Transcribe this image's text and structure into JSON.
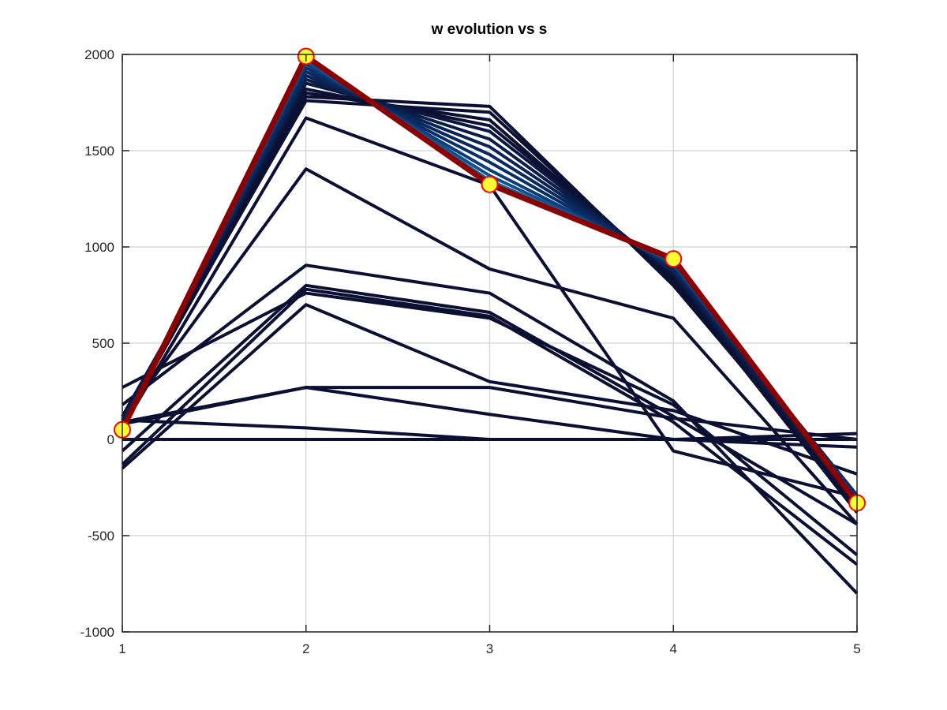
{
  "chart_data": {
    "type": "line",
    "title": "w evolution vs s",
    "xlabel": "",
    "ylabel": "",
    "x": [
      1,
      2,
      3,
      4,
      5
    ],
    "xlim": [
      1,
      5
    ],
    "ylim": [
      -1000,
      2000
    ],
    "xticks": [
      "1",
      "2",
      "3",
      "4",
      "5"
    ],
    "yticks": [
      "-1000",
      "-500",
      "0",
      "500",
      "1000",
      "1500",
      "2000"
    ],
    "grid": true,
    "line_colors": {
      "early": "#0b1033",
      "mid": "#08306b",
      "late": "#1f77b4",
      "final": "#8b0000",
      "marker_fill": "#ffff33",
      "marker_edge": "#ff0000"
    },
    "series": [
      {
        "values": [
          0,
          0,
          0,
          0,
          0
        ]
      },
      {
        "values": [
          100,
          60,
          0,
          0,
          30
        ]
      },
      {
        "values": [
          90,
          270,
          270,
          110,
          0
        ]
      },
      {
        "values": [
          80,
          270,
          130,
          0,
          -40
        ]
      },
      {
        "values": [
          -150,
          700,
          300,
          150,
          -180
        ]
      },
      {
        "values": [
          270,
          760,
          630,
          180,
          -600
        ]
      },
      {
        "values": [
          -130,
          780,
          640,
          90,
          -650
        ]
      },
      {
        "values": [
          -60,
          800,
          660,
          120,
          -440
        ]
      },
      {
        "values": [
          180,
          905,
          760,
          200,
          -800
        ]
      },
      {
        "values": [
          100,
          1405,
          885,
          630,
          -440
        ]
      },
      {
        "values": [
          60,
          1670,
          1320,
          -60,
          -300
        ]
      },
      {
        "values": [
          80,
          1780,
          1730,
          800,
          -330
        ]
      },
      {
        "values": [
          100,
          1760,
          1700,
          820,
          -350
        ]
      },
      {
        "values": [
          120,
          1800,
          1660,
          830,
          -380
        ]
      },
      {
        "values": [
          110,
          1820,
          1630,
          850,
          -360
        ]
      },
      {
        "values": [
          90,
          1850,
          1600,
          860,
          -340
        ]
      },
      {
        "values": [
          100,
          1870,
          1560,
          870,
          -320
        ]
      },
      {
        "values": [
          80,
          1890,
          1520,
          880,
          -300
        ]
      },
      {
        "values": [
          70,
          1910,
          1480,
          890,
          -290
        ]
      },
      {
        "values": [
          70,
          1930,
          1440,
          900,
          -300
        ]
      },
      {
        "values": [
          60,
          1950,
          1400,
          910,
          -310
        ]
      },
      {
        "values": [
          60,
          1965,
          1370,
          920,
          -320
        ]
      },
      {
        "values": [
          55,
          1980,
          1345,
          930,
          -325
        ]
      },
      {
        "values": [
          50,
          1990,
          1325,
          938,
          -330
        ]
      }
    ],
    "final_series": {
      "values": [
        50,
        1990,
        1325,
        938,
        -330
      ]
    }
  }
}
